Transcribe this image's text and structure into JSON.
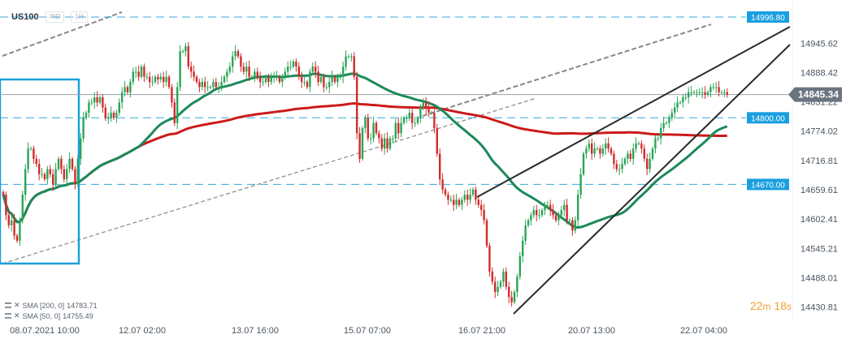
{
  "header": {
    "symbol": "US100",
    "source": "IND",
    "interval": "1H"
  },
  "legend": {
    "sma200": {
      "label": "SMA [200, 0]",
      "value": "14783.71"
    },
    "sma50": {
      "label": "SMA [50, 0]",
      "value": "14755.49"
    }
  },
  "timer": {
    "minutes": "22",
    "minutes_unit": "m",
    "seconds": "18",
    "seconds_unit": "s"
  },
  "colors": {
    "up": "#2aa556",
    "down": "#d42a2a",
    "sma200": "#cc1a1a",
    "sma50": "#1b8a5a",
    "hline": "#34a8dc",
    "channel": "#888888",
    "trend": "#2a2a2a",
    "box": "#1aa0dc",
    "price_tag": "#6b7580",
    "level_tag": "#1a9ee0"
  },
  "chart_data": {
    "type": "candlestick",
    "title": "",
    "ylim": [
      14400,
      15030
    ],
    "y_ticks": [
      "14945.62",
      "14888.42",
      "14831.22",
      "14774.02",
      "14716.81",
      "14659.61",
      "14602.41",
      "14545.21",
      "14488.01",
      "14430.81"
    ],
    "x_labels": [
      "08.07.2021  10:00",
      "12.07  02:00",
      "13.07  16:00",
      "15.07  07:00",
      "16.07  21:00",
      "20.07  13:00",
      "22.07  04:00"
    ],
    "current_price": "14845.34",
    "levels": [
      {
        "label": "14996.80",
        "value": 14996.8
      },
      {
        "label": "14800.00",
        "value": 14800
      },
      {
        "label": "14670.00",
        "value": 14670
      }
    ],
    "closes": [
      14650,
      14610,
      14590,
      14600,
      14570,
      14560,
      14600,
      14650,
      14700,
      14740,
      14740,
      14720,
      14710,
      14690,
      14690,
      14680,
      14700,
      14690,
      14670,
      14700,
      14720,
      14700,
      14680,
      14700,
      14720,
      14700,
      14670,
      14720,
      14760,
      14800,
      14810,
      14830,
      14830,
      14840,
      14830,
      14840,
      14820,
      14800,
      14800,
      14810,
      14800,
      14810,
      14830,
      14850,
      14860,
      14850,
      14870,
      14890,
      14890,
      14880,
      14900,
      14880,
      14880,
      14870,
      14870,
      14880,
      14875,
      14880,
      14870,
      14880,
      14860,
      14830,
      14790,
      14860,
      14930,
      14930,
      14940,
      14900,
      14890,
      14880,
      14870,
      14860,
      14870,
      14860,
      14860,
      14860,
      14870,
      14860,
      14860,
      14870,
      14880,
      14890,
      14900,
      14920,
      14930,
      14920,
      14900,
      14890,
      14900,
      14880,
      14880,
      14890,
      14880,
      14870,
      14870,
      14880,
      14870,
      14880,
      14880,
      14880,
      14870,
      14880,
      14890,
      14900,
      14900,
      14910,
      14900,
      14880,
      14870,
      14870,
      14860,
      14890,
      14900,
      14890,
      14870,
      14880,
      14860,
      14860,
      14870,
      14880,
      14870,
      14880,
      14880,
      14900,
      14920,
      14920,
      14920,
      14880,
      14770,
      14720,
      14780,
      14800,
      14760,
      14760,
      14790,
      14770,
      14760,
      14740,
      14760,
      14740,
      14760,
      14760,
      14790,
      14770,
      14790,
      14800,
      14800,
      14810,
      14790,
      14790,
      14800,
      14820,
      14830,
      14820,
      14810,
      14810,
      14780,
      14730,
      14680,
      14660,
      14650,
      14640,
      14640,
      14630,
      14640,
      14630,
      14640,
      14650,
      14640,
      14650,
      14660,
      14640,
      14630,
      14620,
      14600,
      14550,
      14500,
      14480,
      14460,
      14470,
      14480,
      14500,
      14470,
      14450,
      14440,
      14460,
      14490,
      14530,
      14560,
      14590,
      14600,
      14610,
      14620,
      14610,
      14610,
      14620,
      14630,
      14630,
      14620,
      14610,
      14600,
      14610,
      14620,
      14630,
      14600,
      14600,
      14580,
      14600,
      14650,
      14690,
      14730,
      14740,
      14750,
      14730,
      14740,
      14740,
      14730,
      14740,
      14750,
      14740,
      14730,
      14710,
      14700,
      14700,
      14710,
      14720,
      14730,
      14720,
      14740,
      14750,
      14750,
      14740,
      14720,
      14700,
      14720,
      14740,
      14760,
      14760,
      14780,
      14790,
      14790,
      14800,
      14810,
      14820,
      14830,
      14830,
      14840,
      14840,
      14850,
      14850,
      14850,
      14850,
      14850,
      14850,
      14845,
      14850,
      14860,
      14860,
      14860,
      14850,
      14850,
      14850,
      14845
    ],
    "series": [
      {
        "name": "SMA [200, 0]",
        "value": "14783.71"
      },
      {
        "name": "SMA [50, 0]",
        "value": "14755.49"
      }
    ]
  }
}
